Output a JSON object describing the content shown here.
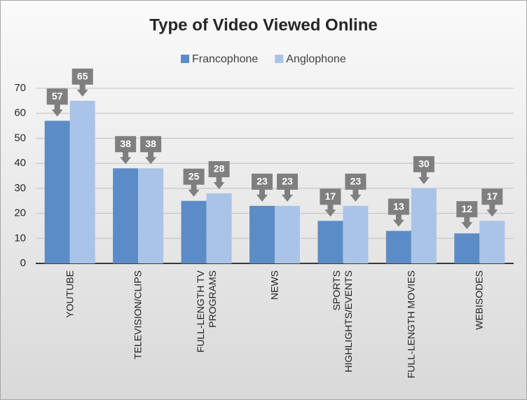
{
  "chart_data": {
    "type": "bar",
    "title": "Type of Video Viewed Online",
    "categories": [
      "YOUTUBE",
      "TELEVISION/CLIPS",
      "FULL-LENGTH TV PROGRAMS",
      "NEWS",
      "SPORTS HIGHLIGHTS/EVENTS",
      "FULL-LENGTH MOVIES",
      "WEBISODES"
    ],
    "series": [
      {
        "name": "Francophone",
        "color": "#5b8cc6",
        "values": [
          57,
          38,
          25,
          23,
          17,
          13,
          12
        ]
      },
      {
        "name": "Anglophone",
        "color": "#a9c4e7",
        "values": [
          65,
          38,
          28,
          23,
          23,
          30,
          17
        ]
      }
    ],
    "ylim": [
      0,
      70
    ],
    "yticks": [
      0,
      10,
      20,
      30,
      40,
      50,
      60,
      70
    ],
    "grid": true,
    "legend": "top"
  }
}
